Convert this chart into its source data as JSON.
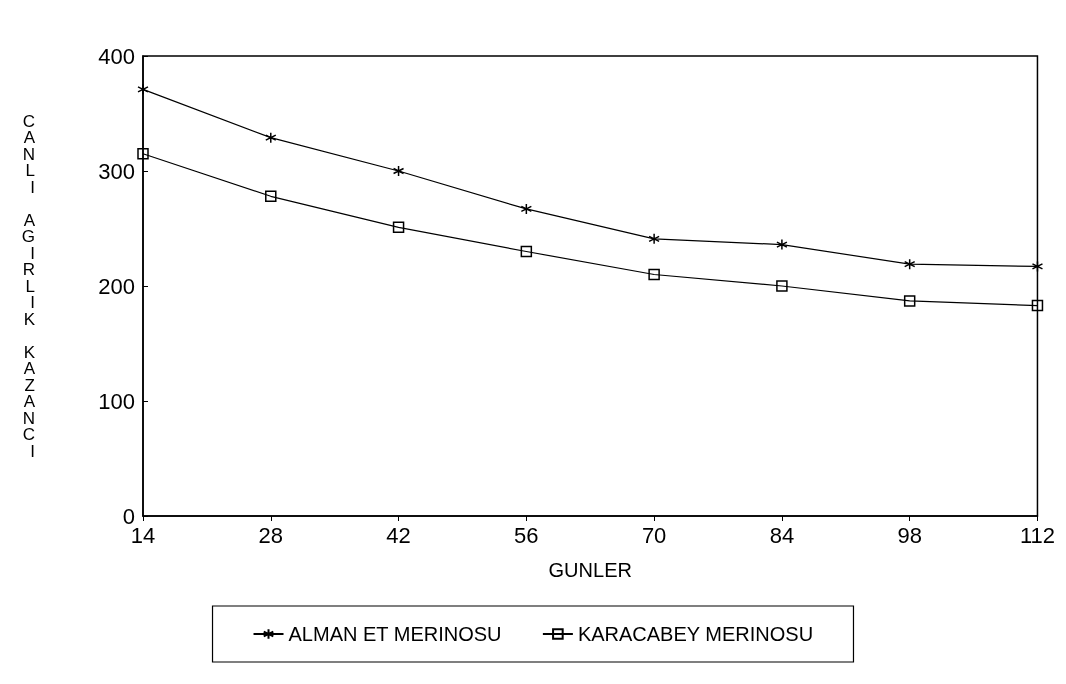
{
  "chart_data": {
    "type": "line",
    "xlabel": "GUNLER",
    "ylabel": "CANLI AGIRLIK KAZANCI",
    "x": [
      14,
      28,
      42,
      56,
      70,
      84,
      98,
      112
    ],
    "xlim": [
      14,
      112
    ],
    "xticks": [
      14,
      28,
      42,
      56,
      70,
      84,
      98,
      112
    ],
    "ylim": [
      0,
      400
    ],
    "yticks": [
      0,
      100,
      200,
      300,
      400
    ],
    "grid": false,
    "legend": "bottom",
    "line_style": "solid",
    "series": [
      {
        "name": "ALMAN ET MERINOSU",
        "color": "#000000",
        "marker": "cross",
        "values": [
          371,
          329,
          300,
          267,
          241,
          236,
          219,
          217
        ]
      },
      {
        "name": "KARACABEY MERINOSU",
        "color": "#000000",
        "marker": "square",
        "values": [
          315,
          278,
          251,
          230,
          210,
          200,
          187,
          183
        ]
      }
    ]
  }
}
